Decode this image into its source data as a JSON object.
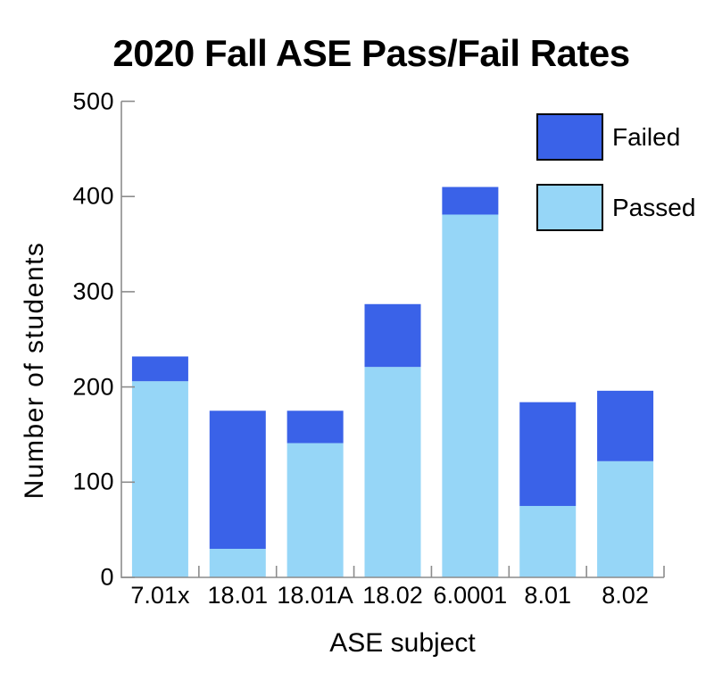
{
  "chart_data": {
    "type": "bar",
    "stacked": true,
    "title": "2020 Fall ASE Pass/Fail Rates",
    "xlabel": "ASE subject",
    "ylabel": "Number of students",
    "categories": [
      "7.01x",
      "18.01",
      "18.01A",
      "18.02",
      "6.0001",
      "8.01",
      "8.02"
    ],
    "series": [
      {
        "name": "Passed",
        "color": "#96d6f7",
        "values": [
          206,
          30,
          141,
          221,
          381,
          75,
          122
        ]
      },
      {
        "name": "Failed",
        "color": "#3a62e8",
        "values": [
          26,
          145,
          34,
          66,
          29,
          109,
          74
        ]
      }
    ],
    "ylim": [
      0,
      500
    ],
    "yticks": [
      0,
      100,
      200,
      300,
      400,
      500
    ],
    "grid": false,
    "legend": {
      "position": "upper right",
      "entries": [
        {
          "label": "Failed",
          "color": "#3a62e8"
        },
        {
          "label": "Passed",
          "color": "#96d6f7"
        }
      ]
    },
    "axis_color": "#8c8c8c",
    "text_color": "#000000",
    "background_color": "#ffffff"
  }
}
